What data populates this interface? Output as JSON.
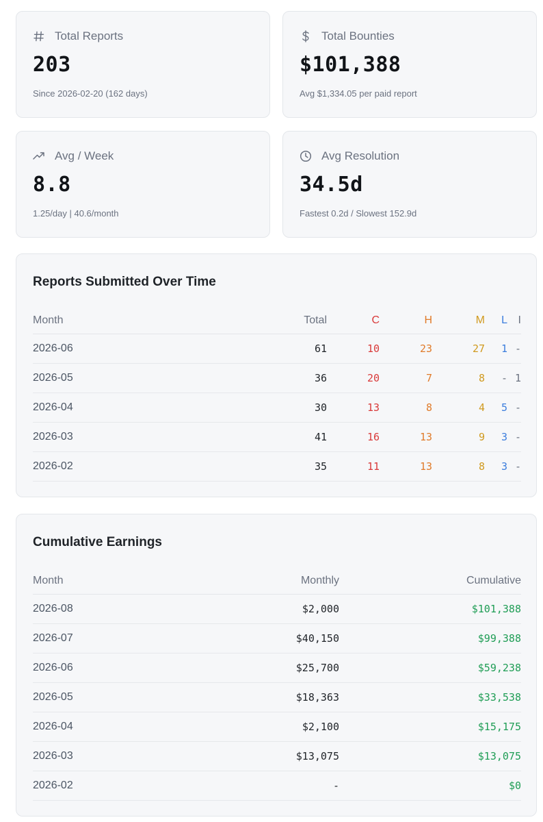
{
  "stats": {
    "total_reports": {
      "label": "Total Reports",
      "icon": "hash-icon",
      "value": "203",
      "sub": "Since 2026-02-20 (162 days)"
    },
    "total_bounties": {
      "label": "Total Bounties",
      "icon": "dollar-icon",
      "value": "$101,388",
      "sub": "Avg $1,334.05 per paid report"
    },
    "avg_week": {
      "label": "Avg / Week",
      "icon": "trend-up-icon",
      "value": "8.8",
      "sub": "1.25/day | 40.6/month"
    },
    "avg_resolution": {
      "label": "Avg Resolution",
      "icon": "clock-icon",
      "value": "34.5d",
      "sub": "Fastest 0.2d / Slowest 152.9d"
    }
  },
  "reports": {
    "title": "Reports Submitted Over Time",
    "headers": {
      "month": "Month",
      "total": "Total",
      "c": "C",
      "h": "H",
      "m": "M",
      "l": "L",
      "i": "I"
    },
    "rows": [
      {
        "month": "2026-06",
        "total": "61",
        "c": "10",
        "h": "23",
        "m": "27",
        "l": "1",
        "i": "-"
      },
      {
        "month": "2026-05",
        "total": "36",
        "c": "20",
        "h": "7",
        "m": "8",
        "l": "-",
        "i": "1"
      },
      {
        "month": "2026-04",
        "total": "30",
        "c": "13",
        "h": "8",
        "m": "4",
        "l": "5",
        "i": "-"
      },
      {
        "month": "2026-03",
        "total": "41",
        "c": "16",
        "h": "13",
        "m": "9",
        "l": "3",
        "i": "-"
      },
      {
        "month": "2026-02",
        "total": "35",
        "c": "11",
        "h": "13",
        "m": "8",
        "l": "3",
        "i": "-"
      }
    ],
    "colors": {
      "c": "#d93a3a",
      "h": "#e07b2a",
      "m": "#d09a1f",
      "l": "#3b7ddd",
      "i": "#6b7280"
    }
  },
  "earnings": {
    "title": "Cumulative Earnings",
    "headers": {
      "month": "Month",
      "monthly": "Monthly",
      "cumulative": "Cumulative"
    },
    "rows": [
      {
        "month": "2026-08",
        "monthly": "$2,000",
        "cumulative": "$101,388"
      },
      {
        "month": "2026-07",
        "monthly": "$40,150",
        "cumulative": "$99,388"
      },
      {
        "month": "2026-06",
        "monthly": "$25,700",
        "cumulative": "$59,238"
      },
      {
        "month": "2026-05",
        "monthly": "$18,363",
        "cumulative": "$33,538"
      },
      {
        "month": "2026-04",
        "monthly": "$2,100",
        "cumulative": "$15,175"
      },
      {
        "month": "2026-03",
        "monthly": "$13,075",
        "cumulative": "$13,075"
      },
      {
        "month": "2026-02",
        "monthly": "-",
        "cumulative": "$0"
      }
    ],
    "cumulative_color": "#1f9d55"
  }
}
